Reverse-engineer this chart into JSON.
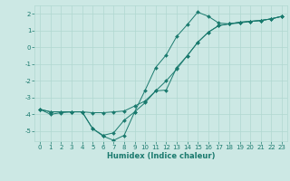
{
  "xlabel": "Humidex (Indice chaleur)",
  "bg_color": "#cce8e4",
  "grid_color": "#b0d8d0",
  "line_color": "#1a7a6e",
  "xlim": [
    -0.5,
    23.5
  ],
  "ylim": [
    -5.6,
    2.5
  ],
  "xticks": [
    0,
    1,
    2,
    3,
    4,
    5,
    6,
    7,
    8,
    9,
    10,
    11,
    12,
    13,
    14,
    15,
    16,
    17,
    18,
    19,
    20,
    21,
    22,
    23
  ],
  "yticks": [
    -5,
    -4,
    -3,
    -2,
    -1,
    0,
    1,
    2
  ],
  "line1_x": [
    0,
    1,
    2,
    3,
    4,
    5,
    6,
    7,
    8,
    9,
    10,
    11,
    12,
    13,
    14,
    15,
    16,
    17,
    18,
    19,
    20,
    21,
    22,
    23
  ],
  "line1_y": [
    -3.7,
    -4.0,
    -3.9,
    -3.85,
    -3.85,
    -4.85,
    -5.3,
    -5.55,
    -5.25,
    -3.85,
    -2.55,
    -1.2,
    -0.45,
    0.65,
    1.35,
    2.1,
    1.85,
    1.45,
    1.4,
    1.45,
    1.55,
    1.6,
    1.7,
    1.85
  ],
  "line2_x": [
    0,
    1,
    2,
    3,
    4,
    5,
    6,
    7,
    8,
    9,
    10,
    11,
    12,
    13,
    14,
    15,
    16,
    17,
    18,
    19,
    20,
    21,
    22,
    23
  ],
  "line2_y": [
    -3.7,
    -3.85,
    -3.85,
    -3.85,
    -3.85,
    -3.9,
    -3.9,
    -3.85,
    -3.8,
    -3.5,
    -3.2,
    -2.6,
    -2.0,
    -1.3,
    -0.5,
    0.3,
    0.9,
    1.3,
    1.4,
    1.5,
    1.55,
    1.6,
    1.7,
    1.85
  ],
  "line3_x": [
    0,
    1,
    2,
    3,
    4,
    5,
    6,
    7,
    8,
    9,
    10,
    11,
    12,
    13,
    14,
    15,
    16,
    17,
    18,
    19,
    20,
    21,
    22,
    23
  ],
  "line3_y": [
    -3.7,
    -3.85,
    -3.85,
    -3.85,
    -3.85,
    -4.85,
    -5.25,
    -5.1,
    -4.35,
    -3.85,
    -3.3,
    -2.6,
    -2.55,
    -1.2,
    -0.5,
    0.3,
    0.9,
    1.3,
    1.4,
    1.5,
    1.55,
    1.6,
    1.7,
    1.85
  ],
  "marker_size": 2.0,
  "line_width": 0.7,
  "tick_fontsize": 5.0,
  "xlabel_fontsize": 6.0
}
